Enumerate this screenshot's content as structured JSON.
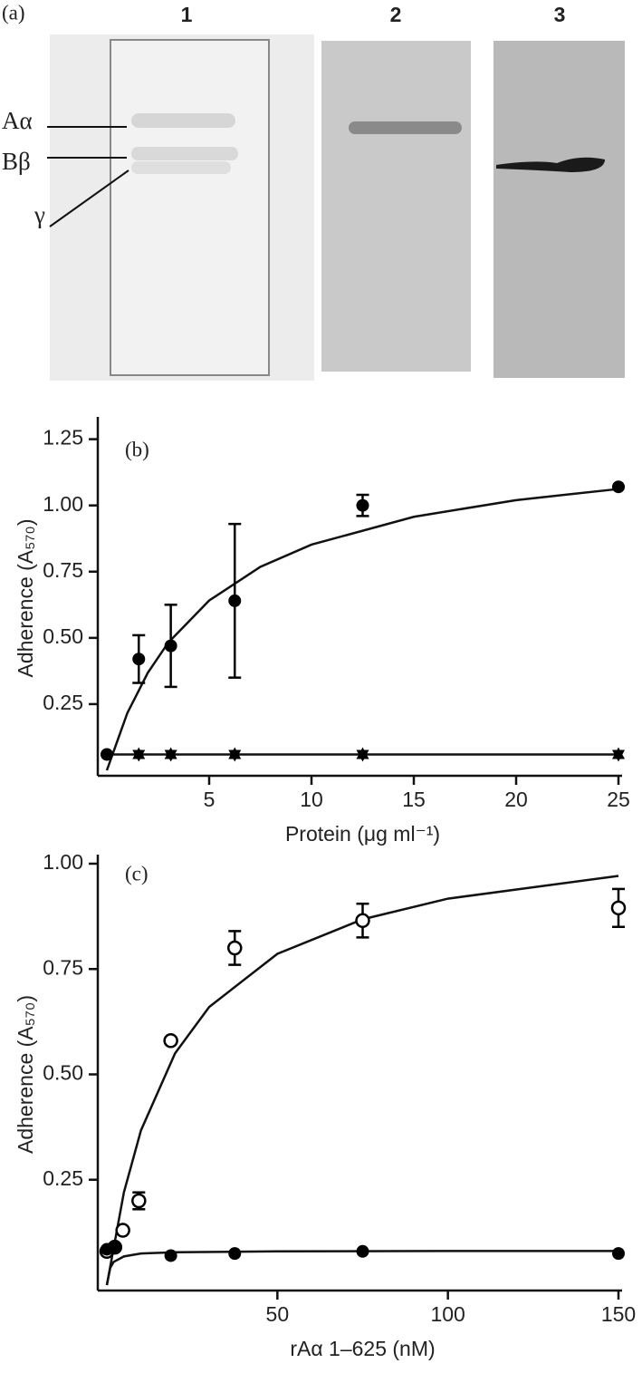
{
  "gel": {
    "panel_label": "(a)",
    "lanes": [
      "1",
      "2",
      "3"
    ],
    "chains": [
      "Aα",
      "Bβ",
      "γ"
    ]
  },
  "chart_data": [
    {
      "type": "scatter",
      "panel_label": "(b)",
      "x_label": "Protein (μg ml⁻¹)",
      "y_label": "Adherence (A₅₇₀)",
      "xlim": [
        0,
        25
      ],
      "ylim": [
        0,
        1.3
      ],
      "xticks": [
        5,
        10,
        15,
        20,
        25
      ],
      "yticks": [
        0.25,
        {
          "value": 0.5,
          "label": "0.50"
        },
        0.75,
        {
          "value": 1,
          "label": "1.00"
        },
        1.25
      ],
      "series": [
        {
          "marker": "filled-circle",
          "color": "#000000",
          "x": [
            0,
            1.56,
            3.125,
            6.25,
            12.5,
            25
          ],
          "values": [
            0.06,
            0.42,
            0.47,
            0.64,
            1.0,
            1.07
          ],
          "errors": [
            0,
            0.09,
            0.155,
            0.29,
            0.04,
            0
          ]
        },
        {
          "marker": "triangle-up",
          "color": "#000000",
          "x": [
            1.56,
            3.125,
            6.25,
            12.5,
            25
          ],
          "values": [
            0.06,
            0.06,
            0.06,
            0.06,
            0.06
          ]
        },
        {
          "marker": "triangle-down",
          "color": "#000000",
          "x": [
            1.56,
            3.125,
            6.25,
            12.5,
            25
          ],
          "values": [
            0.06,
            0.06,
            0.06,
            0.06,
            0.06
          ]
        }
      ],
      "fits": [
        {
          "x": [
            0,
            1,
            2,
            3,
            5,
            7.5,
            10,
            15,
            20,
            25
          ],
          "values": [
            0,
            0.216,
            0.368,
            0.482,
            0.641,
            0.768,
            0.852,
            0.957,
            1.02,
            1.062
          ]
        },
        {
          "x": [
            0,
            25
          ],
          "values": [
            0.06,
            0.06
          ]
        }
      ]
    },
    {
      "type": "scatter",
      "panel_label": "(c)",
      "x_label": "rAα 1–625 (nM)",
      "y_label": "Adherence (A₅₇₀)",
      "xlim": [
        0,
        150
      ],
      "ylim": [
        0,
        1.0
      ],
      "xticks": [
        50,
        100,
        150
      ],
      "yticks": [
        0.25,
        {
          "value": 0.5,
          "label": "0.50"
        },
        0.75,
        {
          "value": 1,
          "label": "1.00"
        }
      ],
      "series": [
        {
          "marker": "open-circle",
          "color": "#000000",
          "x": [
            0,
            2.34,
            4.69,
            9.375,
            18.75,
            37.5,
            75,
            150
          ],
          "values": [
            0.08,
            0.09,
            0.13,
            0.2,
            0.58,
            0.8,
            0.865,
            0.895
          ],
          "errors": [
            0,
            0,
            0,
            0.02,
            0,
            0.04,
            0.04,
            0.045
          ]
        },
        {
          "marker": "filled-circle",
          "color": "#000000",
          "x": [
            0,
            2.34,
            18.75,
            37.5,
            75,
            150
          ],
          "values": [
            0.085,
            0.09,
            0.07,
            0.075,
            0.08,
            0.075
          ]
        }
      ],
      "fits": [
        {
          "x": [
            0,
            5,
            10,
            20,
            30,
            50,
            75,
            100,
            150
          ],
          "values": [
            0,
            0.22,
            0.367,
            0.55,
            0.66,
            0.786,
            0.868,
            0.917,
            0.971
          ]
        },
        {
          "x": [
            0,
            1,
            2,
            5,
            10,
            20,
            50,
            100,
            150
          ],
          "values": [
            0,
            0.041,
            0.055,
            0.068,
            0.075,
            0.078,
            0.08,
            0.081,
            0.081
          ]
        }
      ]
    }
  ]
}
